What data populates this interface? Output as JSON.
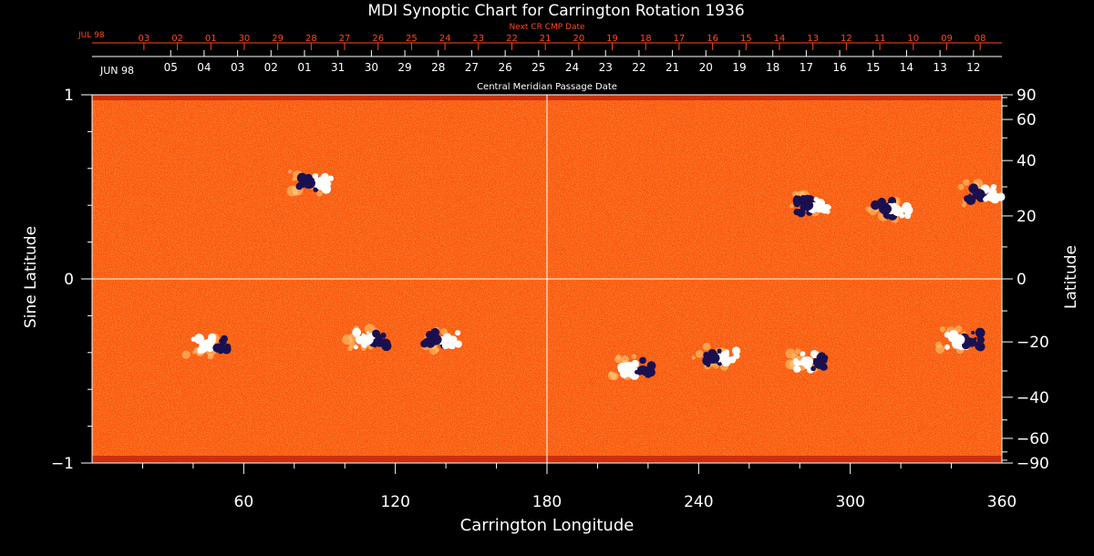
{
  "chart_data": {
    "type": "heatmap",
    "title": "MDI Synoptic Chart for Carrington Rotation 1936",
    "next_cr_label": "Next CR CMP Date",
    "cmp_label": "Central Meridian Passage Date",
    "month_start": "JUN 98",
    "next_month_start": "JUL 98",
    "cmp_dates": [
      "05",
      "04",
      "03",
      "02",
      "01",
      "31",
      "30",
      "29",
      "28",
      "27",
      "26",
      "25",
      "24",
      "23",
      "22",
      "21",
      "20",
      "19",
      "18",
      "17",
      "16",
      "15",
      "14",
      "13",
      "12"
    ],
    "next_cr_dates": [
      "03",
      "02",
      "01",
      "30",
      "29",
      "28",
      "27",
      "26",
      "25",
      "24",
      "23",
      "22",
      "21",
      "20",
      "19",
      "18",
      "17",
      "16",
      "15",
      "14",
      "13",
      "12",
      "11",
      "10",
      "09",
      "08"
    ],
    "xlabel": "Carrington Longitude",
    "ylabel_left": "Sine Latitude",
    "ylabel_right": "Latitude",
    "xlim": [
      0,
      360
    ],
    "ylim": [
      -1,
      1
    ],
    "x_ticks": [
      60,
      120,
      180,
      240,
      300,
      360
    ],
    "y_ticks_left": [
      {
        "value": 1,
        "label": "1"
      },
      {
        "value": 0,
        "label": "0"
      },
      {
        "value": -1,
        "label": "−1"
      }
    ],
    "y_ticks_right": [
      90,
      60,
      40,
      20,
      0,
      -20,
      -40,
      -60,
      -90
    ],
    "crosshair": {
      "longitude": 180,
      "sine_latitude": 0
    },
    "colors": {
      "background": "#ff5a0a",
      "positive_polarity": "#ffffff",
      "negative_polarity": "#1a1050",
      "date_color_red": "#ff4a1a"
    },
    "active_regions": [
      {
        "lon": 88,
        "sinlat": 0.52,
        "lead": "negative"
      },
      {
        "lon": 47,
        "sinlat": -0.36,
        "lead": "positive"
      },
      {
        "lon": 111,
        "sinlat": -0.33,
        "lead": "positive"
      },
      {
        "lon": 138,
        "sinlat": -0.33,
        "lead": "negative"
      },
      {
        "lon": 285,
        "sinlat": 0.4,
        "lead": "negative"
      },
      {
        "lon": 316,
        "sinlat": 0.38,
        "lead": "negative"
      },
      {
        "lon": 353,
        "sinlat": 0.46,
        "lead": "negative"
      },
      {
        "lon": 248,
        "sinlat": -0.43,
        "lead": "negative"
      },
      {
        "lon": 285,
        "sinlat": -0.45,
        "lead": "positive"
      },
      {
        "lon": 345,
        "sinlat": -0.33,
        "lead": "positive"
      },
      {
        "lon": 215,
        "sinlat": -0.48,
        "lead": "positive"
      }
    ]
  }
}
